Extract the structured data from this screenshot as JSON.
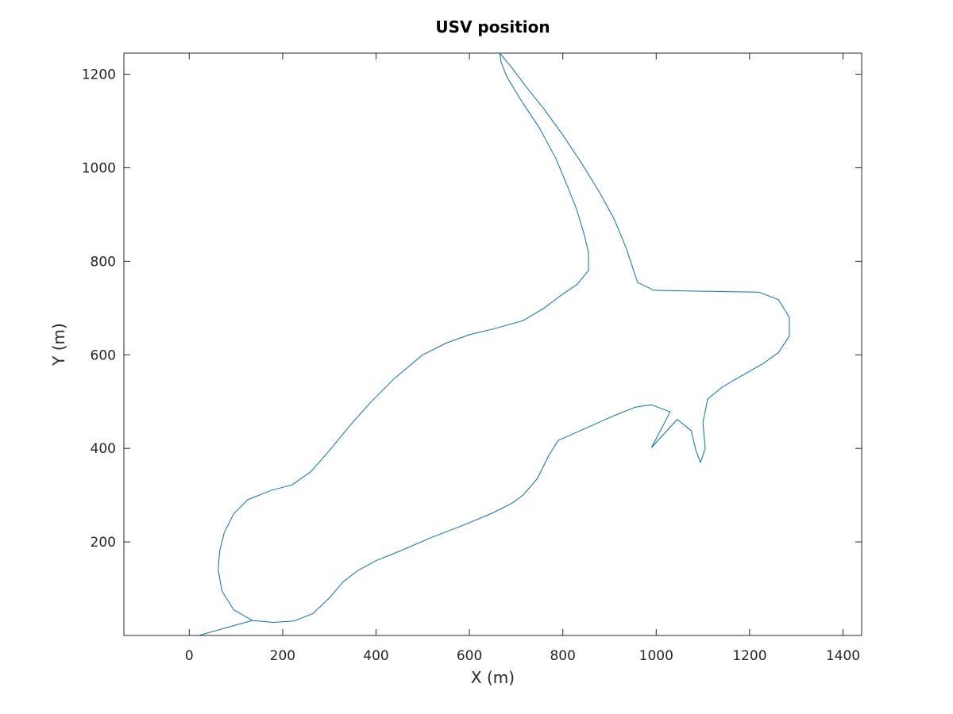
{
  "chart_data": {
    "type": "line",
    "title": "USV position",
    "xlabel": "X (m)",
    "ylabel": "Y (m)",
    "xlim": [
      -140,
      1440
    ],
    "ylim": [
      0,
      1245
    ],
    "xticks": [
      0,
      200,
      400,
      600,
      800,
      1000,
      1200,
      1400
    ],
    "yticks": [
      200,
      400,
      600,
      800,
      1000,
      1200
    ],
    "grid": false,
    "line_color": "#0072BD",
    "axis_color": "#262626",
    "series": [
      {
        "points": [
          [
            20,
            0
          ],
          [
            135,
            32
          ],
          [
            95,
            55
          ],
          [
            70,
            95
          ],
          [
            62,
            140
          ],
          [
            65,
            180
          ],
          [
            75,
            220
          ],
          [
            95,
            260
          ],
          [
            125,
            290
          ],
          [
            175,
            310
          ],
          [
            220,
            322
          ],
          [
            260,
            350
          ],
          [
            300,
            395
          ],
          [
            345,
            450
          ],
          [
            390,
            500
          ],
          [
            440,
            550
          ],
          [
            500,
            600
          ],
          [
            550,
            625
          ],
          [
            600,
            643
          ],
          [
            650,
            655
          ],
          [
            715,
            673
          ],
          [
            760,
            700
          ],
          [
            800,
            730
          ],
          [
            830,
            750
          ],
          [
            855,
            780
          ],
          [
            855,
            820
          ],
          [
            845,
            860
          ],
          [
            830,
            910
          ],
          [
            810,
            960
          ],
          [
            785,
            1020
          ],
          [
            750,
            1085
          ],
          [
            710,
            1145
          ],
          [
            680,
            1195
          ],
          [
            668,
            1225
          ],
          [
            665,
            1245
          ],
          [
            690,
            1215
          ],
          [
            720,
            1175
          ],
          [
            760,
            1125
          ],
          [
            800,
            1070
          ],
          [
            840,
            1010
          ],
          [
            880,
            945
          ],
          [
            910,
            890
          ],
          [
            935,
            830
          ],
          [
            960,
            755
          ],
          [
            995,
            738
          ],
          [
            1040,
            737
          ],
          [
            1100,
            736
          ],
          [
            1160,
            735
          ],
          [
            1220,
            734
          ],
          [
            1262,
            718
          ],
          [
            1285,
            680
          ],
          [
            1285,
            640
          ],
          [
            1262,
            605
          ],
          [
            1230,
            582
          ],
          [
            1195,
            562
          ],
          [
            1165,
            545
          ],
          [
            1140,
            530
          ],
          [
            1110,
            505
          ],
          [
            1100,
            455
          ],
          [
            1105,
            400
          ],
          [
            1095,
            370
          ],
          [
            1085,
            395
          ],
          [
            1075,
            438
          ],
          [
            1045,
            462
          ],
          [
            990,
            402
          ],
          [
            1030,
            478
          ],
          [
            990,
            493
          ],
          [
            955,
            488
          ],
          [
            910,
            470
          ],
          [
            860,
            448
          ],
          [
            790,
            417
          ],
          [
            770,
            385
          ],
          [
            745,
            335
          ],
          [
            715,
            300
          ],
          [
            690,
            282
          ],
          [
            650,
            262
          ],
          [
            590,
            237
          ],
          [
            520,
            210
          ],
          [
            450,
            180
          ],
          [
            400,
            160
          ],
          [
            360,
            138
          ],
          [
            330,
            115
          ],
          [
            300,
            80
          ],
          [
            265,
            47
          ],
          [
            225,
            31
          ],
          [
            180,
            28
          ],
          [
            135,
            32
          ]
        ]
      }
    ]
  }
}
